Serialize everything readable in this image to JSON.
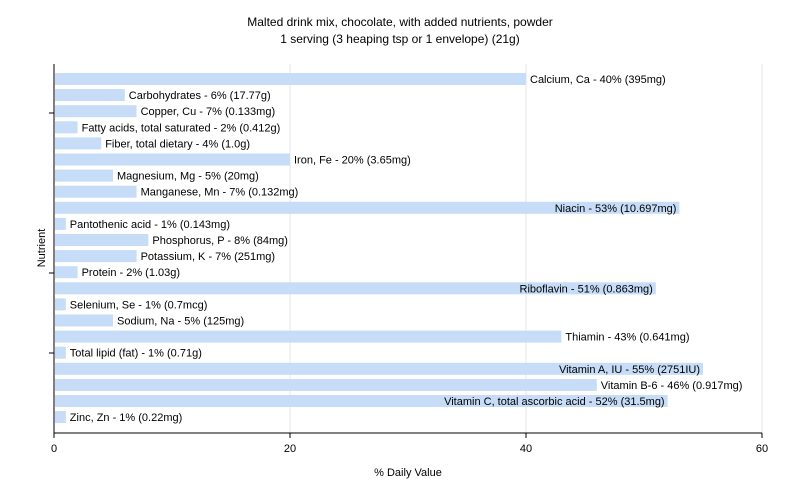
{
  "chart_data": {
    "type": "bar",
    "orientation": "horizontal",
    "title": "Malted drink mix, chocolate, with added nutrients, powder",
    "subtitle": "1 serving (3 heaping tsp or 1 envelope) (21g)",
    "xlabel": "% Daily Value",
    "ylabel": "Nutrient",
    "xlim": [
      0,
      60
    ],
    "xticks": [
      "0",
      "20",
      "40",
      "60"
    ],
    "grid": true,
    "bar_color": "#c6dcf7",
    "categories": [
      "Calcium, Ca",
      "Carbohydrates",
      "Copper, Cu",
      "Fatty acids, total saturated",
      "Fiber, total dietary",
      "Iron, Fe",
      "Magnesium, Mg",
      "Manganese, Mn",
      "Niacin",
      "Pantothenic acid",
      "Phosphorus, P",
      "Potassium, K",
      "Protein",
      "Riboflavin",
      "Selenium, Se",
      "Sodium, Na",
      "Thiamin",
      "Total lipid (fat)",
      "Vitamin A, IU",
      "Vitamin B-6",
      "Vitamin C, total ascorbic acid",
      "Zinc, Zn"
    ],
    "values": [
      40,
      6,
      7,
      2,
      4,
      20,
      5,
      7,
      53,
      1,
      8,
      7,
      2,
      51,
      1,
      5,
      43,
      1,
      55,
      46,
      52,
      1
    ],
    "labels": [
      "Calcium, Ca - 40% (395mg)",
      "Carbohydrates - 6% (17.77g)",
      "Copper, Cu - 7% (0.133mg)",
      "Fatty acids, total saturated - 2% (0.412g)",
      "Fiber, total dietary - 4% (1.0g)",
      "Iron, Fe - 20% (3.65mg)",
      "Magnesium, Mg - 5% (20mg)",
      "Manganese, Mn - 7% (0.132mg)",
      "Niacin - 53% (10.697mg)",
      "Pantothenic acid - 1% (0.143mg)",
      "Phosphorus, P - 8% (84mg)",
      "Potassium, K - 7% (251mg)",
      "Protein - 2% (1.03g)",
      "Riboflavin - 51% (0.863mg)",
      "Selenium, Se - 1% (0.7mcg)",
      "Sodium, Na - 5% (125mg)",
      "Thiamin - 43% (0.641mg)",
      "Total lipid (fat) - 1% (0.71g)",
      "Vitamin A, IU - 55% (2751IU)",
      "Vitamin B-6 - 46% (0.917mg)",
      "Vitamin C, total ascorbic acid - 52% (31.5mg)",
      "Zinc, Zn - 1% (0.22mg)"
    ]
  }
}
